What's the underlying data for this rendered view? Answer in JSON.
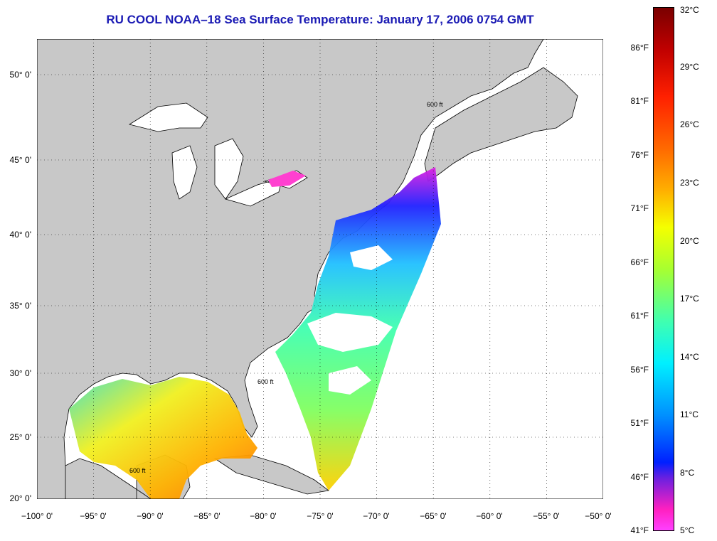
{
  "title": "RU COOL  NOAA–18  Sea Surface Temperature:  January 17, 2006 0754 GMT",
  "map": {
    "extent": {
      "lon_min": -100,
      "lon_max": -50,
      "lat_min": 20,
      "lat_max": 52.5
    },
    "land_color": "#c8c8c8",
    "no_data_color": "#ffffff",
    "isobath_label": "600 ft",
    "lat_labels": [
      "50° 0'",
      "45° 0'",
      "40° 0'",
      "35° 0'",
      "30° 0'",
      "25° 0'",
      "20° 0'"
    ],
    "lon_labels": [
      "−100° 0'",
      "−95° 0'",
      "−90° 0'",
      "−85° 0'",
      "−80° 0'",
      "−75° 0'",
      "−70° 0'",
      "−65° 0'",
      "−60° 0'",
      "−55° 0'",
      "−50° 0'"
    ]
  },
  "colorbar": {
    "fahrenheit_labels": [
      "86°F",
      "81°F",
      "76°F",
      "71°F",
      "66°F",
      "61°F",
      "56°F",
      "51°F",
      "46°F",
      "41°F"
    ],
    "celsius_labels": [
      "32°C",
      "29°C",
      "26°C",
      "23°C",
      "20°C",
      "17°C",
      "14°C",
      "11°C",
      "8°C",
      "5°C"
    ],
    "range_c": [
      5,
      32
    ]
  }
}
